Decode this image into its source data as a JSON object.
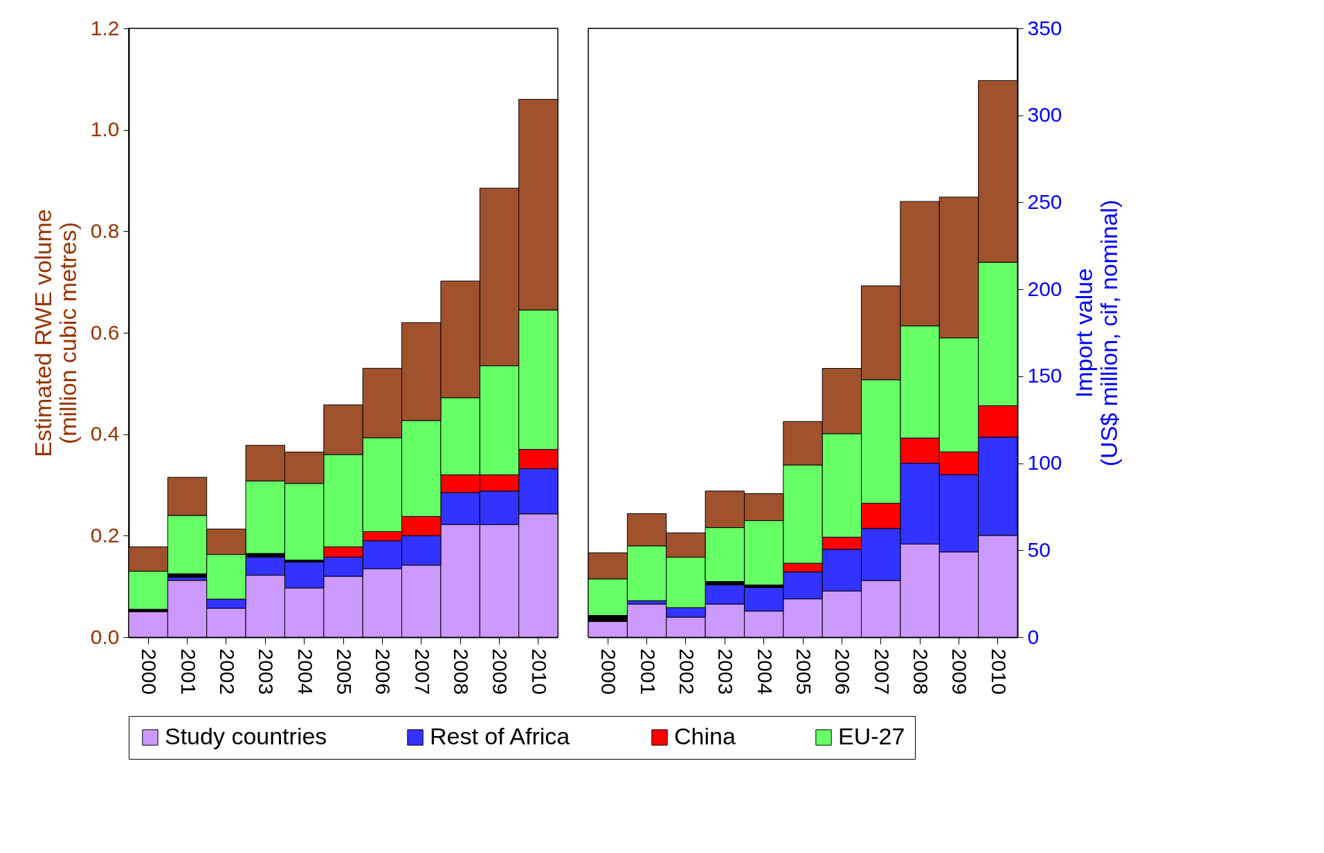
{
  "chart_data": [
    {
      "type": "bar",
      "stacked": true,
      "ylabel": "Estimated RWE volume\n(million cubic metres)",
      "categories": [
        "2000",
        "2001",
        "2002",
        "2003",
        "2004",
        "2005",
        "2006",
        "2007",
        "2008",
        "2009",
        "2010"
      ],
      "ylim": [
        0,
        1.2
      ],
      "yticks": [
        {
          "value": 0,
          "label": "0.0"
        },
        0.2,
        0.4,
        0.6,
        0.8,
        {
          "value": 1,
          "label": "1.0"
        },
        1.2
      ],
      "grid": false,
      "legend": "bottom",
      "series": [
        {
          "name": "Study countries",
          "color": "#cc99ff",
          "values": [
            0.05,
            0.112,
            0.057,
            0.122,
            0.097,
            0.12,
            0.135,
            0.142,
            0.222,
            0.222,
            0.243
          ]
        },
        {
          "name": "Rest of Africa",
          "color": "#3333ff",
          "values": [
            null,
            0.006,
            0.018,
            0.036,
            0.051,
            0.038,
            0.055,
            0.058,
            0.063,
            0.066,
            0.089
          ]
        },
        {
          "color": "#000000",
          "values": [
            0.005,
            0.007,
            null,
            0.007,
            0.004,
            null,
            null,
            null,
            null,
            null,
            null
          ]
        },
        {
          "name": "China",
          "color": "#ff0000",
          "values": [
            null,
            null,
            null,
            null,
            null,
            0.02,
            0.018,
            0.038,
            0.035,
            0.032,
            0.038
          ]
        },
        {
          "name": "EU-27",
          "color": "#66ff66",
          "values": [
            0.075,
            0.115,
            0.088,
            0.143,
            0.151,
            0.182,
            0.185,
            0.189,
            0.152,
            0.215,
            0.275
          ]
        },
        {
          "color": "#a0522d",
          "values": [
            0.048,
            0.075,
            0.05,
            0.07,
            0.062,
            0.098,
            0.137,
            0.193,
            0.23,
            0.35,
            0.415
          ]
        }
      ]
    },
    {
      "type": "bar",
      "stacked": true,
      "y2label": "Import value\n(US$ million, cif, nominal)",
      "categories": [
        "2000",
        "2001",
        "2002",
        "2003",
        "2004",
        "2005",
        "2006",
        "2007",
        "2008",
        "2009",
        "2010"
      ],
      "y2lim": [
        0,
        350
      ],
      "y2ticks": [
        0,
        50,
        100,
        150,
        200,
        250,
        300,
        350
      ],
      "grid": false,
      "series": [
        {
          "color": "#cc99ff",
          "axis": "y2",
          "values": [
            9,
            19,
            11.5,
            19,
            15,
            22,
            26.5,
            32.5,
            53.5,
            49,
            58.5
          ]
        },
        {
          "color": "#3333ff",
          "axis": "y2",
          "values": [
            null,
            2,
            5.5,
            11,
            13.5,
            15.5,
            24,
            30,
            46.5,
            44.5,
            56.5
          ]
        },
        {
          "color": "#000000",
          "axis": "y2",
          "values": [
            3.5,
            null,
            null,
            2,
            1.5,
            null,
            null,
            null,
            null,
            null,
            null
          ]
        },
        {
          "color": "#ff0000",
          "axis": "y2",
          "values": [
            null,
            null,
            null,
            null,
            null,
            5,
            7,
            14.5,
            14.5,
            13,
            18
          ]
        },
        {
          "color": "#66ff66",
          "axis": "y2",
          "values": [
            21,
            31.5,
            29,
            31,
            37,
            56.5,
            59.5,
            71,
            64.5,
            65.5,
            82.5
          ]
        },
        {
          "color": "#a0522d",
          "axis": "y2",
          "values": [
            15,
            18.5,
            14,
            21,
            15.5,
            25,
            37.5,
            54,
            71.5,
            81,
            104.5
          ]
        }
      ]
    }
  ]
}
